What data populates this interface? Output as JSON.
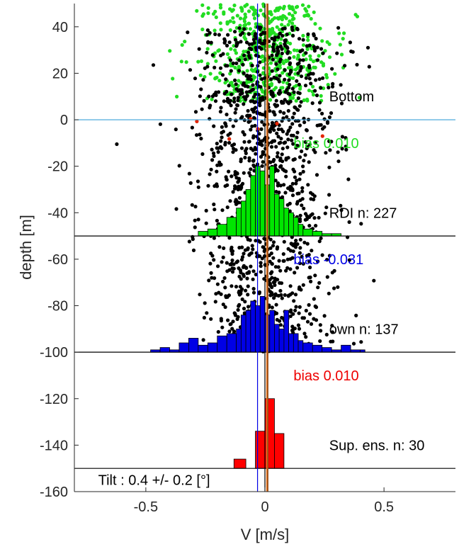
{
  "chart_data": {
    "type": "scatter",
    "xlabel": "V [m/s]",
    "ylabel": "depth [m]",
    "xlim": [
      -0.8,
      0.8
    ],
    "ylim": [
      -160,
      50
    ],
    "xticks": [
      -0.5,
      0,
      0.5
    ],
    "xtick_labels": [
      "-0.5",
      "0",
      "0.5"
    ],
    "yticks": [
      40,
      20,
      0,
      -20,
      -40,
      -60,
      -80,
      -100,
      -120,
      -140,
      -160
    ],
    "ytick_labels": [
      "40",
      "20",
      "0",
      "-20",
      "-40",
      "-60",
      "-80",
      "-100",
      "-120",
      "-140",
      "-160"
    ],
    "grid": false,
    "colors": {
      "rdi": "#00e600",
      "own": "#0000e6",
      "sup": "#ff0000",
      "scatter": "#000000",
      "surface": "#3aa0d8",
      "orange": "#e87722",
      "brown": "#7a3b10"
    },
    "reference_lines": [
      {
        "depth": 0,
        "color": "#3aa0d8"
      },
      {
        "depth": -50,
        "color": "#000000"
      },
      {
        "depth": -100,
        "color": "#000000"
      },
      {
        "depth": -150,
        "color": "#000000"
      }
    ],
    "vertical_lines": [
      {
        "v": 0.01,
        "color": "#e87722"
      },
      {
        "v": 0.012,
        "color": "#7a3b10"
      },
      {
        "v": -0.031,
        "color": "#0000e6"
      },
      {
        "v": 0.0,
        "color": "#000000"
      }
    ],
    "scatter_clouds": [
      {
        "name": "green",
        "color": "#22dd22",
        "count": 520,
        "depth_range": [
          8,
          50
        ],
        "v_sd": 0.14
      },
      {
        "name": "black",
        "color": "#000000",
        "count": 1300,
        "depth_range": [
          -100,
          40
        ],
        "v_sd": 0.14
      },
      {
        "name": "red",
        "color": "#e32400",
        "count": 6,
        "depth_range": [
          -10,
          5
        ],
        "v_sd": 0.15
      }
    ],
    "histograms": [
      {
        "name": "RDI",
        "color": "#00e600",
        "baseline": -50,
        "edges": [
          -0.28,
          -0.24,
          -0.2,
          -0.16,
          -0.12,
          -0.1,
          -0.08,
          -0.06,
          -0.04,
          -0.02,
          0.0,
          0.02,
          0.04,
          0.06,
          0.08,
          0.1,
          0.12,
          0.14,
          0.16,
          0.2,
          0.24,
          0.28,
          0.32
        ],
        "heights": [
          2,
          3,
          5,
          8,
          12,
          15,
          20,
          26,
          30,
          28,
          22,
          30,
          18,
          16,
          12,
          10,
          8,
          5,
          3,
          2,
          1,
          1
        ]
      },
      {
        "name": "own",
        "color": "#0000e6",
        "baseline": -100,
        "edges": [
          -0.48,
          -0.44,
          -0.4,
          -0.36,
          -0.32,
          -0.28,
          -0.24,
          -0.2,
          -0.16,
          -0.12,
          -0.1,
          -0.08,
          -0.06,
          -0.04,
          -0.02,
          0.0,
          0.02,
          0.04,
          0.06,
          0.08,
          0.1,
          0.12,
          0.14,
          0.16,
          0.2,
          0.24,
          0.28,
          0.32,
          0.36,
          0.4,
          0.42
        ],
        "heights": [
          1,
          2,
          1,
          4,
          6,
          3,
          4,
          7,
          8,
          10,
          16,
          18,
          22,
          20,
          24,
          16,
          18,
          12,
          10,
          18,
          8,
          8,
          5,
          4,
          3,
          2,
          1,
          3,
          1,
          1
        ]
      },
      {
        "name": "Sup. ens.",
        "color": "#ff0000",
        "baseline": -150,
        "edges": [
          -0.13,
          -0.08,
          -0.04,
          0.0,
          0.04,
          0.08
        ],
        "heights": [
          4,
          0,
          16,
          30,
          15
        ]
      }
    ],
    "annotations": [
      {
        "text": "Bottom",
        "v": 0.27,
        "depth": 10,
        "color": "#000000"
      },
      {
        "text": "bias  0.010",
        "v": 0.12,
        "depth": -10,
        "color": "#22dd22"
      },
      {
        "text": "RDI n: 227",
        "v": 0.27,
        "depth": -40,
        "color": "#000000"
      },
      {
        "text": "bias -0.031",
        "v": 0.12,
        "depth": -60,
        "color": "#0000e6"
      },
      {
        "text": "own n: 137",
        "v": 0.27,
        "depth": -90,
        "color": "#000000"
      },
      {
        "text": "bias  0.010",
        "v": 0.12,
        "depth": -110,
        "color": "#ee0000"
      },
      {
        "text": "Sup. ens. n: 30",
        "v": 0.27,
        "depth": -140,
        "color": "#000000"
      },
      {
        "text": "Tilt : 0.4 +/- 0.2 [°]",
        "v": -0.7,
        "depth": -155,
        "color": "#000000"
      }
    ]
  }
}
